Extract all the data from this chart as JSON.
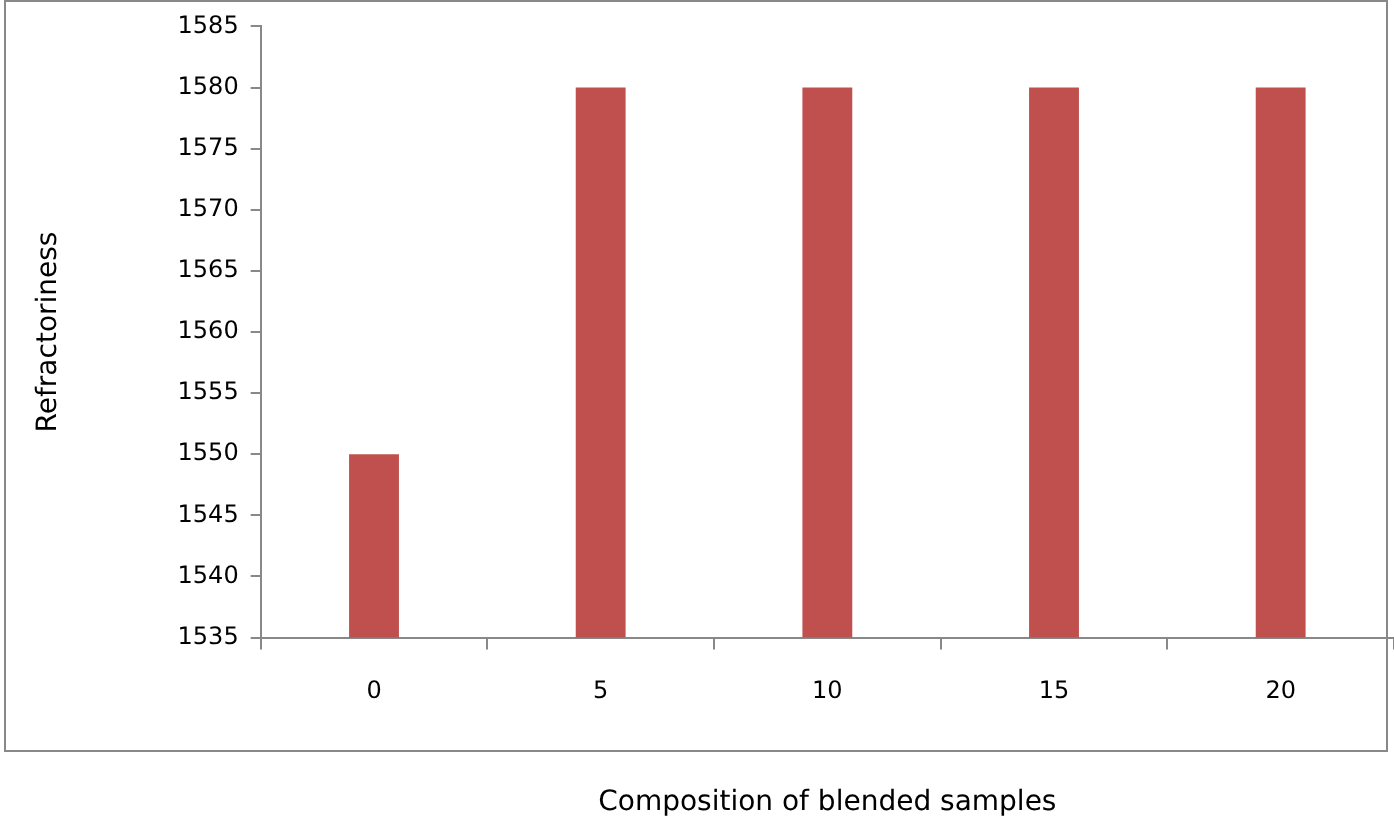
{
  "chart_data": {
    "type": "bar",
    "xlabel": "Composition of blended samples",
    "ylabel": "Refractoriness",
    "categories": [
      "0",
      "5",
      "10",
      "15",
      "20"
    ],
    "values": [
      1550,
      1580,
      1580,
      1580,
      1580
    ],
    "color": "#c0504d",
    "ylim": [
      1535,
      1585
    ],
    "yticks": [
      1535,
      1540,
      1545,
      1550,
      1555,
      1560,
      1565,
      1570,
      1575,
      1580,
      1585
    ],
    "grid": false,
    "legend": false
  }
}
